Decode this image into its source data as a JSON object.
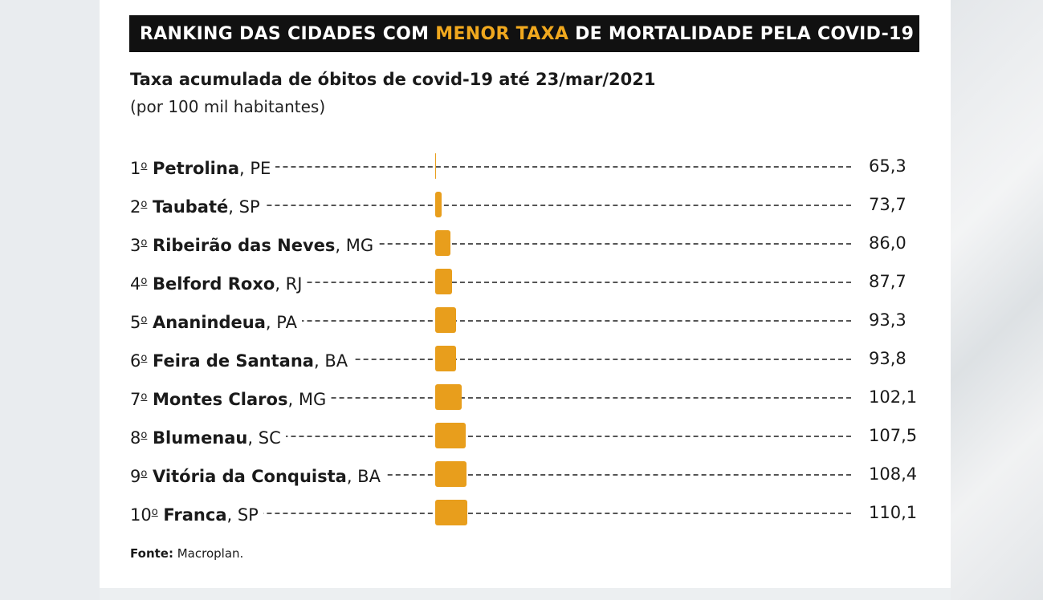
{
  "title": {
    "before": "RANKING DAS CIDADES COM ",
    "highlight": "MENOR TAXA",
    "after": " DE MORTALIDADE PELA COVID-19",
    "highlight_color": "#f0a81e"
  },
  "subtitle": "Taxa acumulada de óbitos de covid-19 até 23/mar/2021",
  "subtitle_unit": "(por 100 mil habitantes)",
  "source": {
    "label": "Fonte:",
    "text": " Macroplan."
  },
  "colors": {
    "bar": "#e89e1c",
    "title_bg": "#111111"
  },
  "chart_data": {
    "type": "bar",
    "orientation": "horizontal",
    "title": "RANKING DAS CIDADES COM MENOR TAXA DE MORTALIDADE PELA COVID-19",
    "subtitle": "Taxa acumulada de óbitos de covid-19 até 23/mar/2021",
    "unit": "(por 100 mil habitantes)",
    "rows": [
      {
        "rank": "1",
        "city": "Petrolina",
        "state": ", PE",
        "value": 65.3,
        "value_label": "65,3"
      },
      {
        "rank": "2",
        "city": "Taubaté",
        "state": ", SP",
        "value": 73.7,
        "value_label": "73,7"
      },
      {
        "rank": "3",
        "city": "Ribeirão das Neves",
        "state": ", MG",
        "value": 86.0,
        "value_label": "86,0"
      },
      {
        "rank": "4",
        "city": "Belford Roxo",
        "state": ", RJ",
        "value": 87.7,
        "value_label": "87,7"
      },
      {
        "rank": "5",
        "city": "Ananindeua",
        "state": ", PA",
        "value": 93.3,
        "value_label": "93,3"
      },
      {
        "rank": "6",
        "city": "Feira de Santana",
        "state": ", BA",
        "value": 93.8,
        "value_label": "93,8"
      },
      {
        "rank": "7",
        "city": "Montes Claros",
        "state": ", MG",
        "value": 102.1,
        "value_label": "102,1"
      },
      {
        "rank": "8",
        "city": "Blumenau",
        "state": ", SC",
        "value": 107.5,
        "value_label": "107,5"
      },
      {
        "rank": "9",
        "city": "Vitória da Conquista",
        "state": ", BA",
        "value": 108.4,
        "value_label": "108,4"
      },
      {
        "rank": "10",
        "city": "Franca",
        "state": ", SP",
        "value": 110.1,
        "value_label": "110,1"
      }
    ],
    "rank_suffix": "º"
  }
}
